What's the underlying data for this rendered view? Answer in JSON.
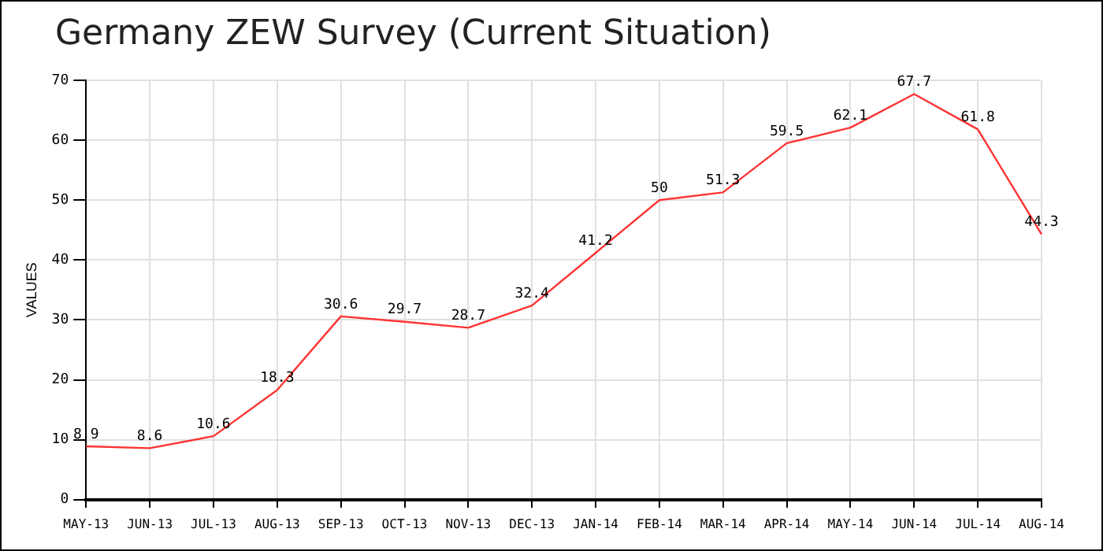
{
  "chart_data": {
    "type": "line",
    "title": "Germany ZEW Survey (Current Situation)",
    "ylabel": "VALUES",
    "categories": [
      "MAY-13",
      "JUN-13",
      "JUL-13",
      "AUG-13",
      "SEP-13",
      "OCT-13",
      "NOV-13",
      "DEC-13",
      "JAN-14",
      "FEB-14",
      "MAR-14",
      "APR-14",
      "MAY-14",
      "JUN-14",
      "JUL-14",
      "AUG-14"
    ],
    "series": [
      {
        "color": "#ff3333",
        "values": [
          8.9,
          8.6,
          10.6,
          18.3,
          30.6,
          29.7,
          28.7,
          32.4,
          41.2,
          50,
          51.3,
          59.5,
          62.1,
          67.7,
          61.8,
          44.3
        ]
      }
    ],
    "ylim": [
      0,
      70
    ],
    "yticks": [
      0,
      10,
      20,
      30,
      40,
      50,
      60,
      70
    ],
    "grid": true,
    "data_labels": true,
    "legend": false,
    "marker": "none",
    "line_style": "solid"
  }
}
